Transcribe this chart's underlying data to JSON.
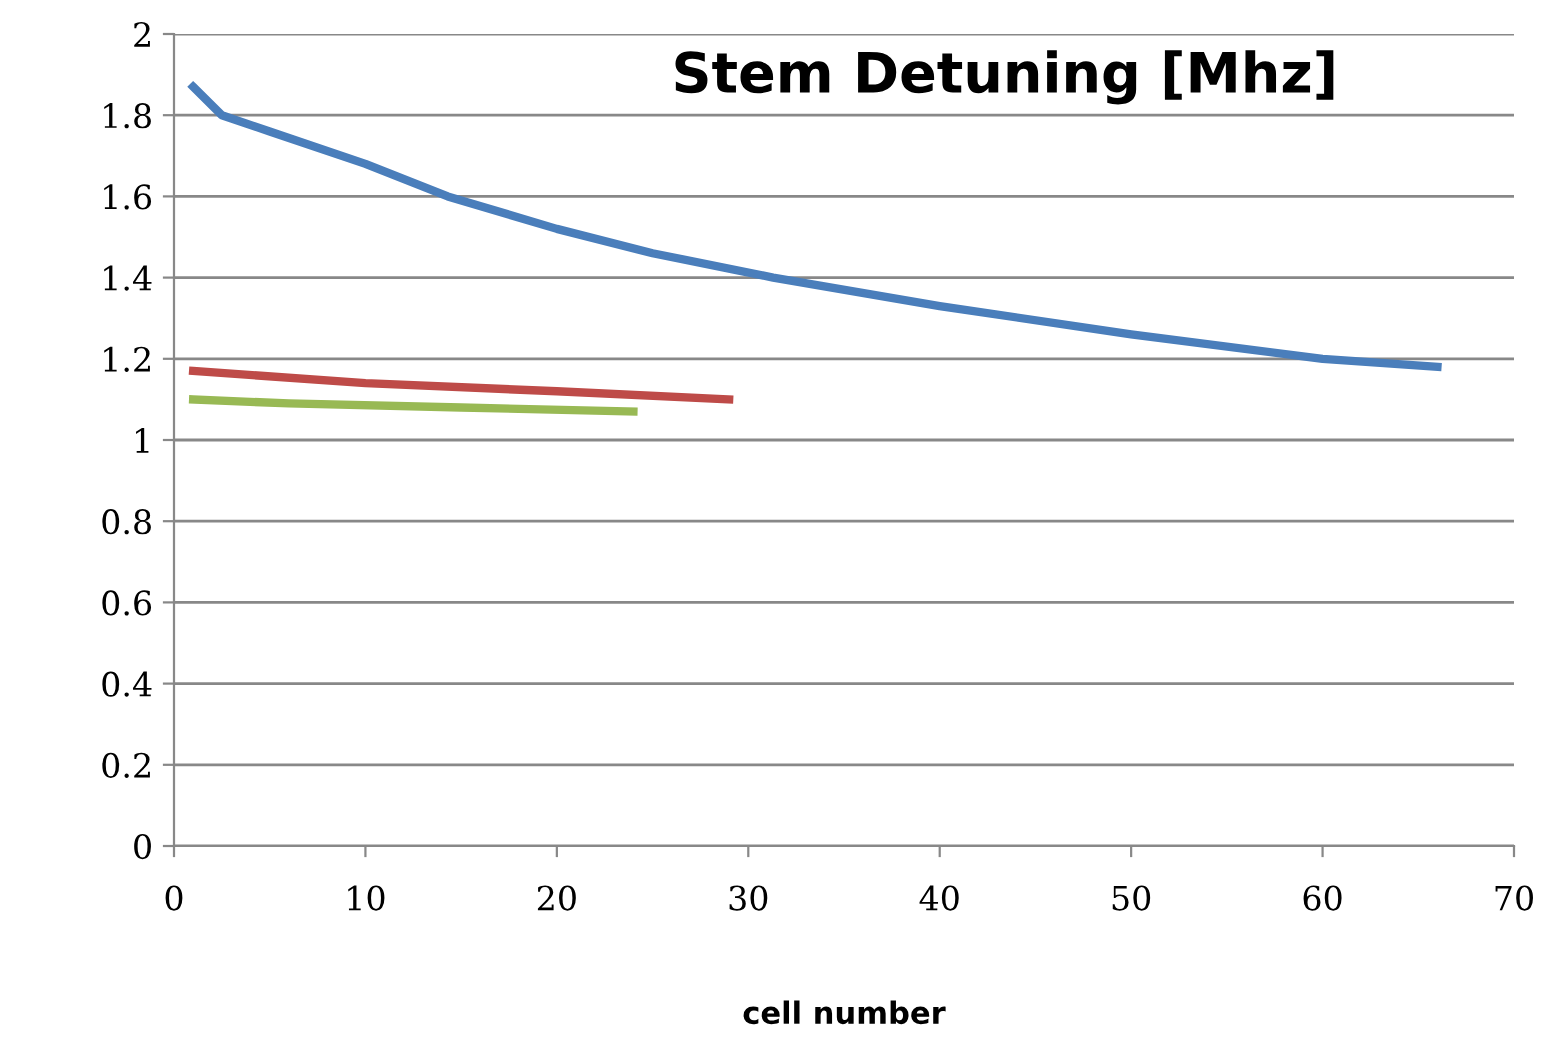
{
  "chart_data": {
    "type": "line",
    "title": "Stem Detuning [Mhz]",
    "xlabel": "cell number",
    "xlim": [
      0,
      70
    ],
    "xticks": [
      0,
      10,
      20,
      30,
      40,
      50,
      60,
      70
    ],
    "ylim": [
      0,
      2
    ],
    "yticks": [
      0,
      0.2,
      0.4,
      0.6,
      0.8,
      1,
      1.2,
      1.4,
      1.6,
      1.8,
      2
    ],
    "grid": "y",
    "marker": "none",
    "line_style": "solid",
    "series": [
      {
        "color": "#4a7ebb",
        "x": [
          1,
          2.5,
          5,
          10,
          14.3,
          20,
          25,
          31.3,
          40,
          50,
          60,
          66
        ],
        "values": [
          1.87,
          1.8,
          1.76,
          1.68,
          1.6,
          1.52,
          1.46,
          1.4,
          1.33,
          1.26,
          1.2,
          1.18
        ]
      },
      {
        "color": "#be4b48",
        "x": [
          1,
          10,
          20,
          29
        ],
        "values": [
          1.17,
          1.14,
          1.12,
          1.1
        ]
      },
      {
        "color": "#98b954",
        "x": [
          1,
          6,
          15,
          24
        ],
        "values": [
          1.1,
          1.09,
          1.08,
          1.07
        ]
      }
    ]
  }
}
